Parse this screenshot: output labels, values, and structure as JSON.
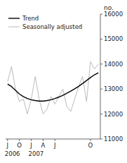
{
  "chart_data": {
    "type": "line",
    "ylabel": "no.",
    "categories": [
      "J",
      null,
      null,
      "O",
      null,
      null,
      "J",
      null,
      null,
      "A",
      null,
      null,
      "J",
      null,
      null,
      null,
      null,
      null,
      null,
      null,
      null,
      "O",
      null,
      null
    ],
    "series": [
      {
        "name": "Trend",
        "color": "#000000",
        "values": [
          13200,
          13100,
          12950,
          12800,
          12700,
          12620,
          12570,
          12540,
          12520,
          12520,
          12540,
          12570,
          12620,
          12680,
          12750,
          12830,
          12920,
          13010,
          13110,
          13220,
          13340,
          13460,
          13570,
          13650
        ]
      },
      {
        "name": "Seasonally adjusted",
        "color": "#bbbbbb",
        "values": [
          13300,
          13900,
          13000,
          12500,
          12600,
          12000,
          12600,
          13500,
          12600,
          12000,
          12200,
          12700,
          12400,
          12700,
          13000,
          12300,
          12100,
          12600,
          13100,
          13500,
          12500,
          14100,
          13800,
          14000
        ]
      }
    ],
    "annotations": [
      {
        "text": "2006",
        "x": 0
      },
      {
        "text": "2007",
        "x": 6
      }
    ],
    "ylim": [
      11000,
      16000
    ],
    "yticks": [
      11000,
      12000,
      13000,
      14000,
      15000,
      16000
    ],
    "legend": "top-left",
    "grid": false,
    "background_color": "#ffffff"
  }
}
